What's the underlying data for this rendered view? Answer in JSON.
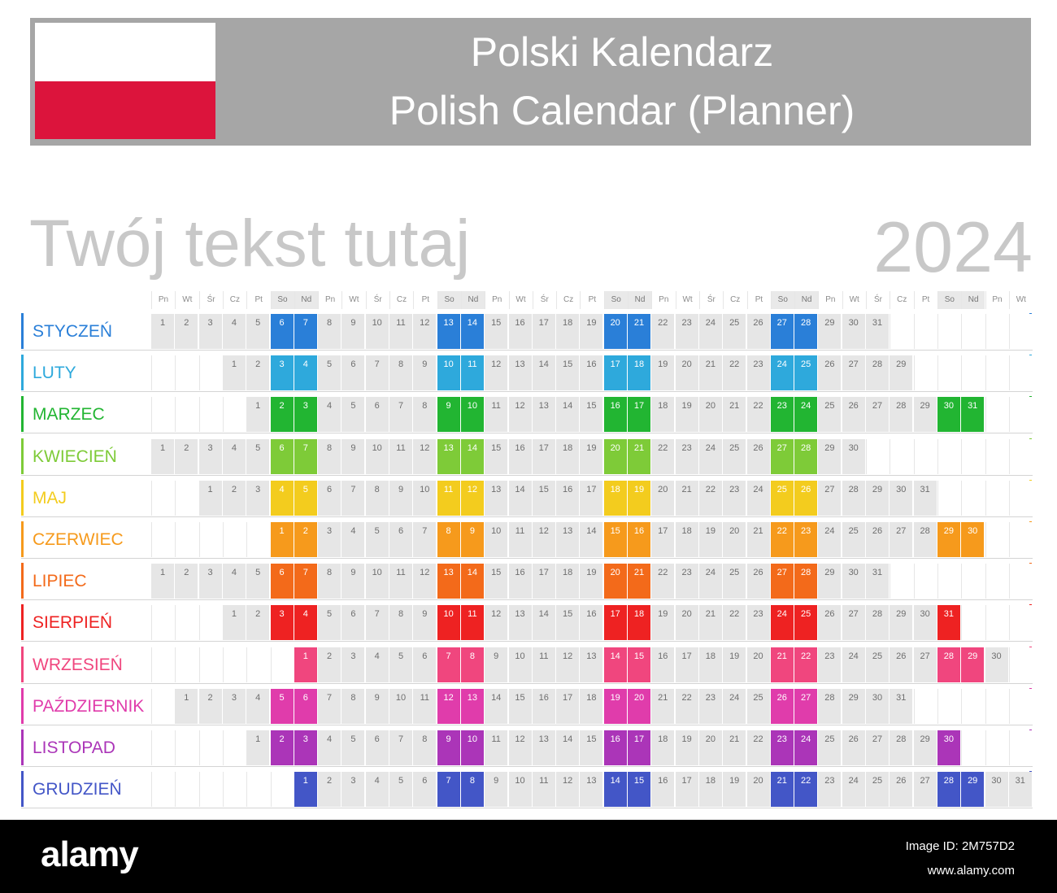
{
  "header": {
    "title_line1": "Polski Kalendarz",
    "title_line2": "Polish Calendar (Planner)",
    "bar_color": "#a6a6a6",
    "flag_colors": [
      "#ffffff",
      "#dc143c"
    ]
  },
  "custom_text": "Twój tekst tutaj",
  "year": "2024",
  "weekday_headers": [
    "Pn",
    "Wt",
    "Śr",
    "Cz",
    "Pt",
    "So",
    "Nd",
    "Pn",
    "Wt",
    "Śr",
    "Cz",
    "Pt",
    "So",
    "Nd",
    "Pn",
    "Wt",
    "Śr",
    "Cz",
    "Pt",
    "So",
    "Nd",
    "Pn",
    "Wt",
    "Śr",
    "Cz",
    "Pt",
    "So",
    "Nd",
    "Pn",
    "Wt",
    "Śr",
    "Cz",
    "Pt",
    "So",
    "Nd",
    "Pn",
    "Wt"
  ],
  "months": [
    {
      "name": "STYCZEŃ",
      "offset": 0,
      "days": 31,
      "color": "#2a7fd8"
    },
    {
      "name": "LUTY",
      "offset": 3,
      "days": 29,
      "color": "#2ea9dc"
    },
    {
      "name": "MARZEC",
      "offset": 4,
      "days": 31,
      "color": "#22b532"
    },
    {
      "name": "KWIECIEŃ",
      "offset": 0,
      "days": 30,
      "color": "#7ecb38"
    },
    {
      "name": "MAJ",
      "offset": 2,
      "days": 31,
      "color": "#f3cc1e"
    },
    {
      "name": "CZERWIEC",
      "offset": 5,
      "days": 30,
      "color": "#f69a1c"
    },
    {
      "name": "LIPIEC",
      "offset": 0,
      "days": 31,
      "color": "#f36a1a"
    },
    {
      "name": "SIERPIEŃ",
      "offset": 3,
      "days": 31,
      "color": "#ee2222"
    },
    {
      "name": "WRZESIEŃ",
      "offset": 6,
      "days": 30,
      "color": "#f0467e"
    },
    {
      "name": "PAŹDZIERNIK",
      "offset": 1,
      "days": 31,
      "color": "#e03cab"
    },
    {
      "name": "LISTOPAD",
      "offset": 4,
      "days": 30,
      "color": "#ab35b8"
    },
    {
      "name": "GRUDZIEŃ",
      "offset": 6,
      "days": 31,
      "color": "#4356c7"
    }
  ],
  "footer": {
    "brand": "alamy",
    "image_id": "Image ID: 2M757D2",
    "site_url": "www.alamy.com"
  }
}
